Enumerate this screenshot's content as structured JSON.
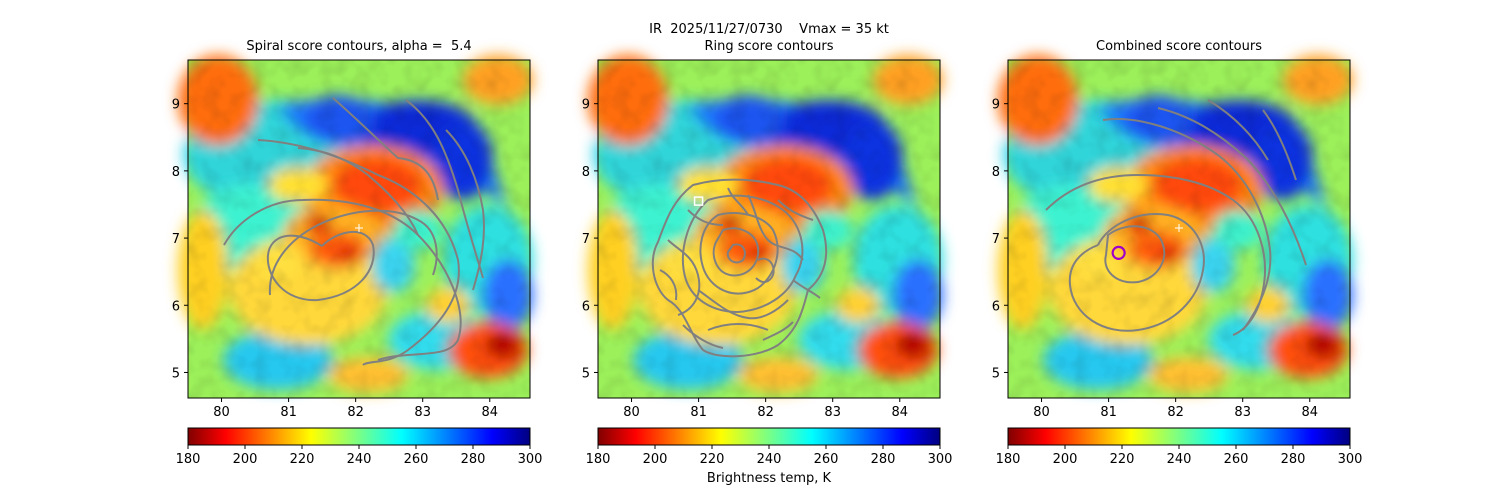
{
  "suptitle": "IR  2025/11/27/0730    Vmax = 35 kt",
  "colors": {
    "contour": "#808080",
    "center_marker": "#ffffff",
    "combined_marker": "#a000c8",
    "ring_marker": "#ffffff"
  },
  "chart_data": [
    {
      "type": "heatmap",
      "title": "Spiral score contours, alpha =  5.4",
      "xlim": [
        79.5,
        84.6
      ],
      "ylim": [
        4.62,
        9.65
      ],
      "xticks": [
        "80",
        "81",
        "82",
        "83",
        "84"
      ],
      "yticks": [
        "5",
        "6",
        "7",
        "8",
        "9"
      ],
      "center_marker": {
        "symbol": "+",
        "x": 82.05,
        "y": 7.15
      },
      "colorbar": {
        "cmap": "jet_r",
        "min": 180,
        "max": 300,
        "ticks": [
          "180",
          "200",
          "220",
          "240",
          "260",
          "280",
          "300"
        ]
      }
    },
    {
      "type": "heatmap",
      "title": "Ring score contours",
      "xlim": [
        79.5,
        84.6
      ],
      "ylim": [
        4.62,
        9.65
      ],
      "xticks": [
        "80",
        "81",
        "82",
        "83",
        "84"
      ],
      "yticks": [
        "5",
        "6",
        "7",
        "8",
        "9"
      ],
      "ring_marker": {
        "symbol": "square",
        "x": 81.0,
        "y": 7.55
      },
      "colorbar": {
        "cmap": "jet_r",
        "min": 180,
        "max": 300,
        "ticks": [
          "180",
          "200",
          "220",
          "240",
          "260",
          "280",
          "300"
        ],
        "label": "Brightness temp, K"
      }
    },
    {
      "type": "heatmap",
      "title": "Combined score contours",
      "xlim": [
        79.5,
        84.6
      ],
      "ylim": [
        4.62,
        9.65
      ],
      "xticks": [
        "80",
        "81",
        "82",
        "83",
        "84"
      ],
      "yticks": [
        "5",
        "6",
        "7",
        "8",
        "9"
      ],
      "center_marker": {
        "symbol": "+",
        "x": 82.05,
        "y": 7.15
      },
      "combined_marker": {
        "symbol": "circle",
        "x": 81.15,
        "y": 6.78
      },
      "colorbar": {
        "cmap": "jet_r",
        "min": 180,
        "max": 300,
        "ticks": [
          "180",
          "200",
          "220",
          "240",
          "260",
          "280",
          "300"
        ]
      }
    }
  ]
}
